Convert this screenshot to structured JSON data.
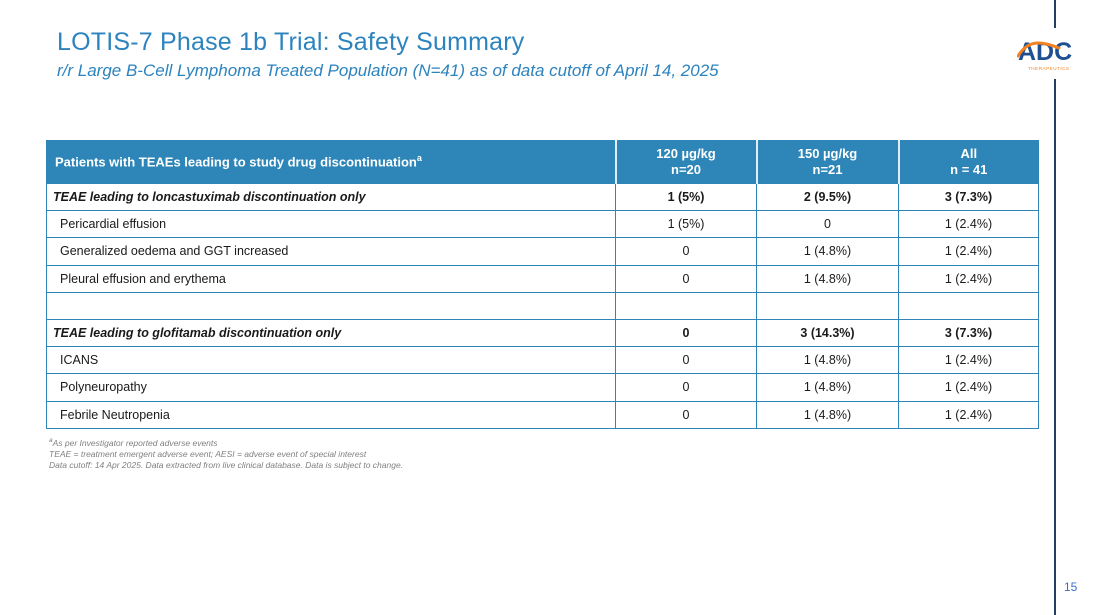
{
  "slide": {
    "title": "LOTIS-7 Phase 1b Trial: Safety Summary",
    "subtitle": "r/r Large B-Cell Lymphoma Treated Population (N=41) as of data cutoff of April 14, 2025",
    "page_number": "15"
  },
  "logo": {
    "text": "ADC",
    "subtext": "THERAPEUTICS"
  },
  "table": {
    "header": {
      "label": "Patients with TEAEs leading to study drug discontinuation",
      "label_superscript": "a",
      "columns": [
        {
          "line1": "120 µg/kg",
          "line2": "n=20"
        },
        {
          "line1": "150 µg/kg",
          "line2": "n=21"
        },
        {
          "line1": "All",
          "line2": "n = 41"
        }
      ]
    },
    "rows": [
      {
        "label": "TEAE leading to loncastuximab discontinuation only",
        "values": [
          "1 (5%)",
          "2 (9.5%)",
          "3 (7.3%)"
        ],
        "style": "section"
      },
      {
        "label": "Pericardial effusion",
        "values": [
          "1 (5%)",
          "0",
          "1 (2.4%)"
        ],
        "style": "item"
      },
      {
        "label": "Generalized oedema and GGT increased",
        "values": [
          "0",
          "1 (4.8%)",
          "1 (2.4%)"
        ],
        "style": "item"
      },
      {
        "label": "Pleural effusion and erythema",
        "values": [
          "0",
          "1 (4.8%)",
          "1 (2.4%)"
        ],
        "style": "item"
      },
      {
        "label": "",
        "values": [
          "",
          "",
          ""
        ],
        "style": "spacer"
      },
      {
        "label": "TEAE leading to glofitamab discontinuation only",
        "values": [
          "0",
          "3 (14.3%)",
          "3 (7.3%)"
        ],
        "style": "section"
      },
      {
        "label": "ICANS",
        "values": [
          "0",
          "1 (4.8%)",
          "1 (2.4%)"
        ],
        "style": "item"
      },
      {
        "label": "Polyneuropathy",
        "values": [
          "0",
          "1 (4.8%)",
          "1 (2.4%)"
        ],
        "style": "item"
      },
      {
        "label": "Febrile Neutropenia",
        "values": [
          "0",
          "1 (4.8%)",
          "1 (2.4%)"
        ],
        "style": "item"
      }
    ]
  },
  "footnotes": [
    {
      "superscript": "a",
      "text": "As per Investigator reported adverse events"
    },
    {
      "superscript": "",
      "text": "TEAE = treatment emergent adverse event; AESI = adverse event of special interest"
    },
    {
      "superscript": "",
      "text": "Data cutoff: 14 Apr 2025. Data extracted from live clinical database.  Data is subject to change."
    }
  ],
  "colors": {
    "accent_blue": "#2E86B8",
    "title_blue": "#2C83BE",
    "divider_navy": "#1F4060",
    "footnote_gray": "#808080",
    "logo_navy": "#1D4F91",
    "logo_orange": "#F58220",
    "page_number_blue": "#3F6FC4"
  }
}
